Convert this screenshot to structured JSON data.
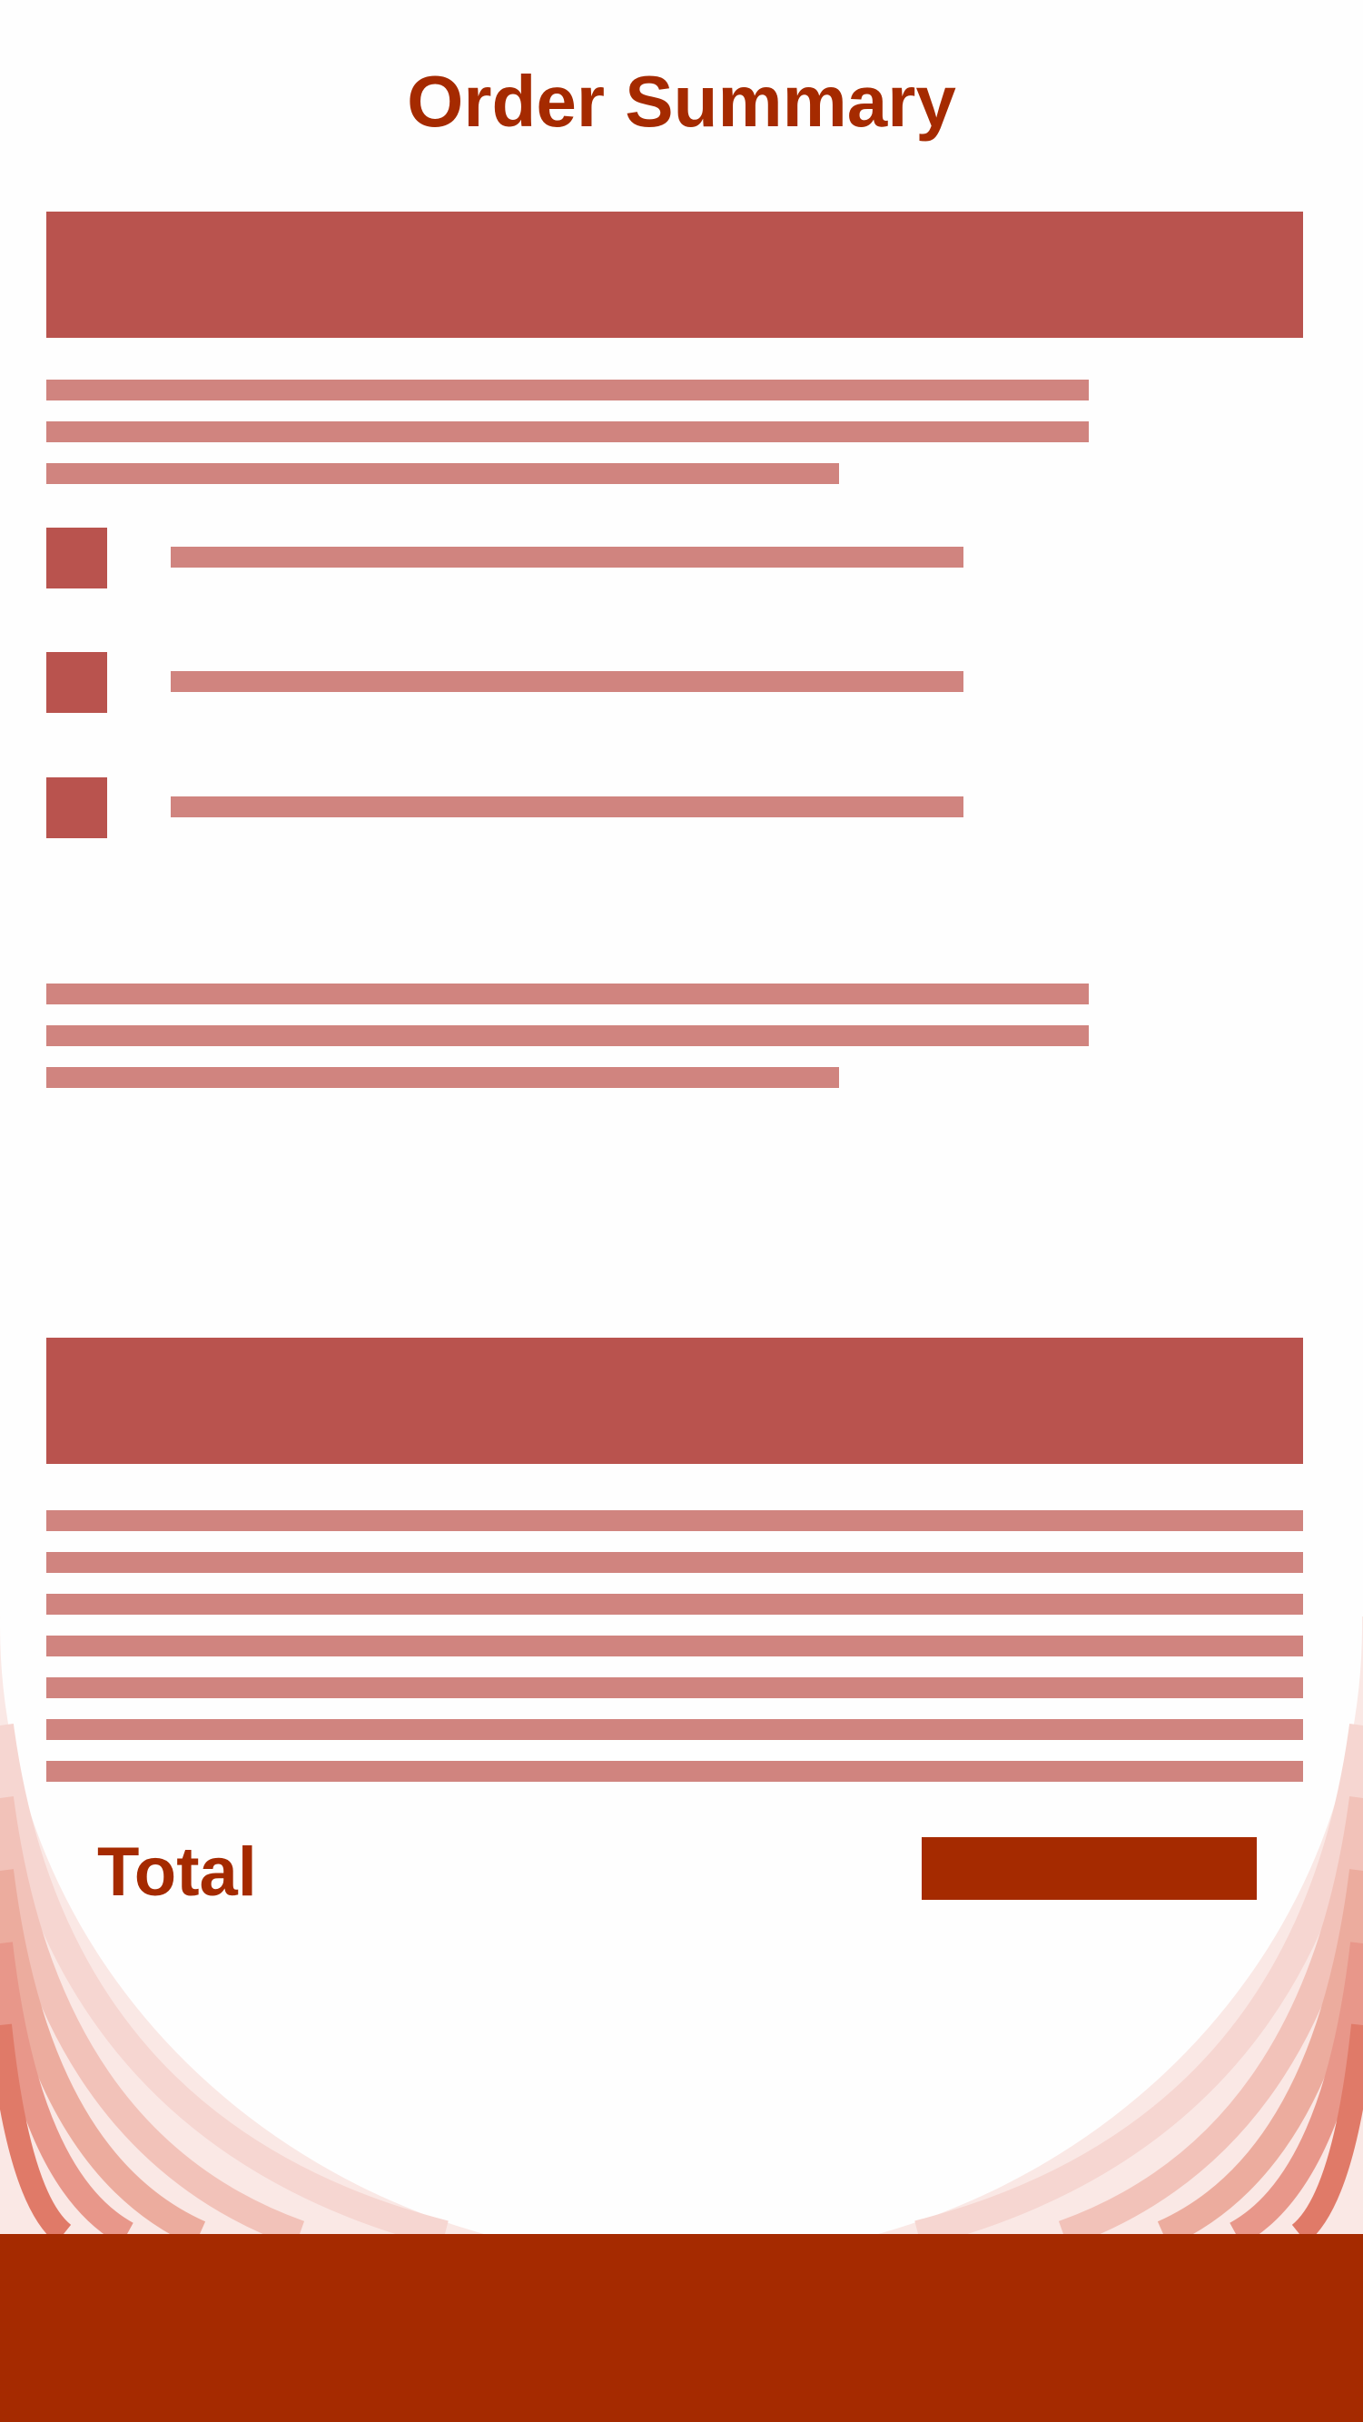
{
  "page": {
    "title": "Order Summary",
    "total_label": "Total"
  },
  "colors": {
    "accent": "#a52a00",
    "header_block": "#b9534e",
    "text_placeholder": "#d0847f",
    "background": "#fefefe"
  },
  "intro_paragraph": {
    "line_count": 3
  },
  "item_list": {
    "item_count": 3
  },
  "second_paragraph": {
    "line_count": 3
  },
  "summary_lines": {
    "line_count": 7
  }
}
